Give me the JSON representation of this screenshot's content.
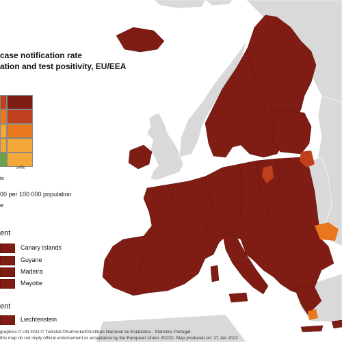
{
  "map": {
    "title_line1": "case notification rate",
    "title_line2": "ation and test positivity, EU/EEA",
    "colors": {
      "sea": "#ffffff",
      "non_eu_land": "#d9d9d9",
      "dark_red": "#7f1c14",
      "red": "#c0401e",
      "orange": "#e8771e",
      "yellow": "#f5a83a",
      "green": "#63a83a"
    }
  },
  "legend": {
    "test_positivity_tick": "≥4%",
    "axis_fragment": "te",
    "rate_label": "00 per 100 000 population",
    "fragment": "e",
    "grid": [
      [
        "red",
        "dark_red"
      ],
      [
        "orange",
        "red"
      ],
      [
        "yellow",
        "orange"
      ],
      [
        "yellow",
        "yellow"
      ],
      [
        "green",
        "yellow"
      ]
    ]
  },
  "outermost": {
    "heading": "ent",
    "items": [
      "Canary Islands",
      "Guyane",
      "Madeira",
      "Mayotte"
    ]
  },
  "small_states": {
    "heading": "ent",
    "items": [
      "Liechtenstein"
    ]
  },
  "footer": {
    "line1": "graphics © UN-FAO © Turkstat.©Kartverket©Instituto Nacional de Estatistica - Statistics Portugal.",
    "line2": "this map do not imply official endorsement or acceptance by the European Union. ECDC. Map produced on: 27 Jan 2022"
  }
}
